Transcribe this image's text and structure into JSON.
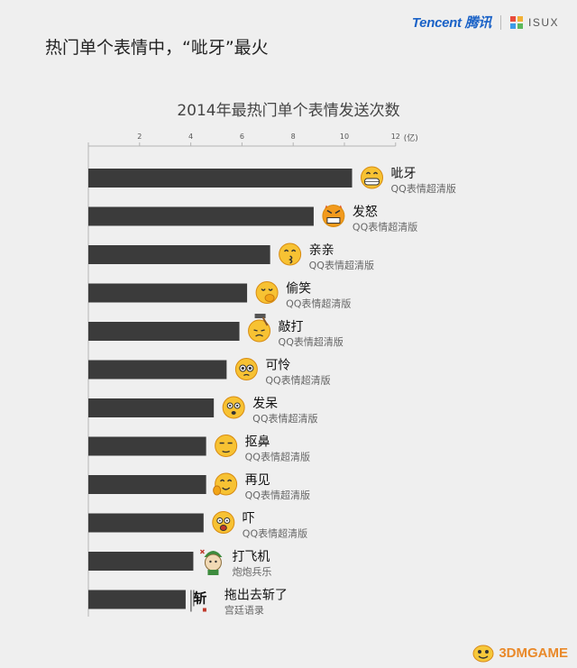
{
  "header": {
    "logo_text": "Tencent 腾讯",
    "isux_text": "ISUX",
    "headline": "热门单个表情中，“呲牙”最火"
  },
  "watermark": {
    "text": "3DMGAME"
  },
  "chart_data": {
    "type": "bar",
    "orientation": "horizontal",
    "title": "2014年最热门单个表情发送次数",
    "unit_label": "(亿)",
    "xlim": [
      0,
      12
    ],
    "ticks": [
      "",
      "2",
      "4",
      "6",
      "8",
      "10",
      "12"
    ],
    "tick_values": [
      0,
      2,
      4,
      6,
      8,
      10,
      12
    ],
    "bar_color": "#3b3b3b",
    "series": [
      {
        "values": [
          10.3,
          8.8,
          7.1,
          6.2,
          5.9,
          5.4,
          4.9,
          4.6,
          4.6,
          4.5,
          4.1,
          3.8
        ]
      }
    ],
    "categories": [
      "呲牙",
      "发怒",
      "亲亲",
      "偷笑",
      "敲打",
      "可怜",
      "发呆",
      "抠鼻",
      "再见",
      "吓",
      "打飞机",
      "拖出去斩了"
    ],
    "sources": [
      "QQ表情超清版",
      "QQ表情超清版",
      "QQ表情超清版",
      "QQ表情超清版",
      "QQ表情超清版",
      "QQ表情超清版",
      "QQ表情超清版",
      "QQ表情超清版",
      "QQ表情超清版",
      "QQ表情超清版",
      "炮炮兵乐",
      "宫廷语录"
    ],
    "icons": [
      "grin-emoji",
      "angry-emoji",
      "kiss-emoji",
      "snicker-emoji",
      "knock-emoji",
      "pitiful-emoji",
      "dazed-emoji",
      "nose-pick-emoji",
      "bye-emoji",
      "scared-emoji",
      "soldier-emoji",
      "calligraphy-emoji"
    ]
  }
}
